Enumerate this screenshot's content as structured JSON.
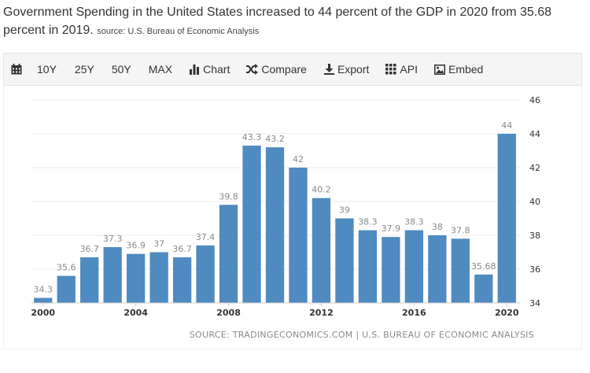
{
  "headline": {
    "text": "Government Spending in the United States increased to 44 percent of the GDP in 2020 from 35.68 percent in 2019.",
    "source": "source: U.S. Bureau of Economic Analysis"
  },
  "toolbar": {
    "calendar_icon": "calendar-icon",
    "range_10y": "10Y",
    "range_25y": "25Y",
    "range_50y": "50Y",
    "range_max": "MAX",
    "chart_label": "Chart",
    "compare_label": "Compare",
    "export_label": "Export",
    "api_label": "API",
    "embed_label": "Embed"
  },
  "footer": {
    "source": "SOURCE: TRADINGECONOMICS.COM | U.S. BUREAU OF ECONOMIC ANALYSIS"
  },
  "chart_data": {
    "type": "bar",
    "categories": [
      "2000",
      "2001",
      "2002",
      "2003",
      "2004",
      "2005",
      "2006",
      "2007",
      "2008",
      "2009",
      "2010",
      "2011",
      "2012",
      "2013",
      "2014",
      "2015",
      "2016",
      "2017",
      "2018",
      "2019",
      "2020"
    ],
    "values": [
      34.3,
      35.6,
      36.7,
      37.3,
      36.9,
      37,
      36.7,
      37.4,
      39.8,
      43.3,
      43.2,
      42,
      40.2,
      39,
      38.3,
      37.9,
      38.3,
      38,
      37.8,
      35.68,
      44
    ],
    "value_labels": [
      "34.3",
      "35.6",
      "36.7",
      "37.3",
      "36.9",
      "37",
      "36.7",
      "37.4",
      "39.8",
      "43.3",
      "43.2",
      "42",
      "40.2",
      "39",
      "38.3",
      "37.9",
      "38.3",
      "38",
      "37.8",
      "35.68",
      "44"
    ],
    "x_tick_labels": [
      "2000",
      "2004",
      "2008",
      "2012",
      "2016",
      "2020"
    ],
    "y_ticks": [
      "34",
      "36",
      "38",
      "40",
      "42",
      "44",
      "46"
    ],
    "ylim": [
      34,
      46
    ],
    "y_axis_side": "right",
    "grid": "horizontal",
    "bar_color": "#4f8ac0",
    "label_color": "#8a8a8a"
  }
}
